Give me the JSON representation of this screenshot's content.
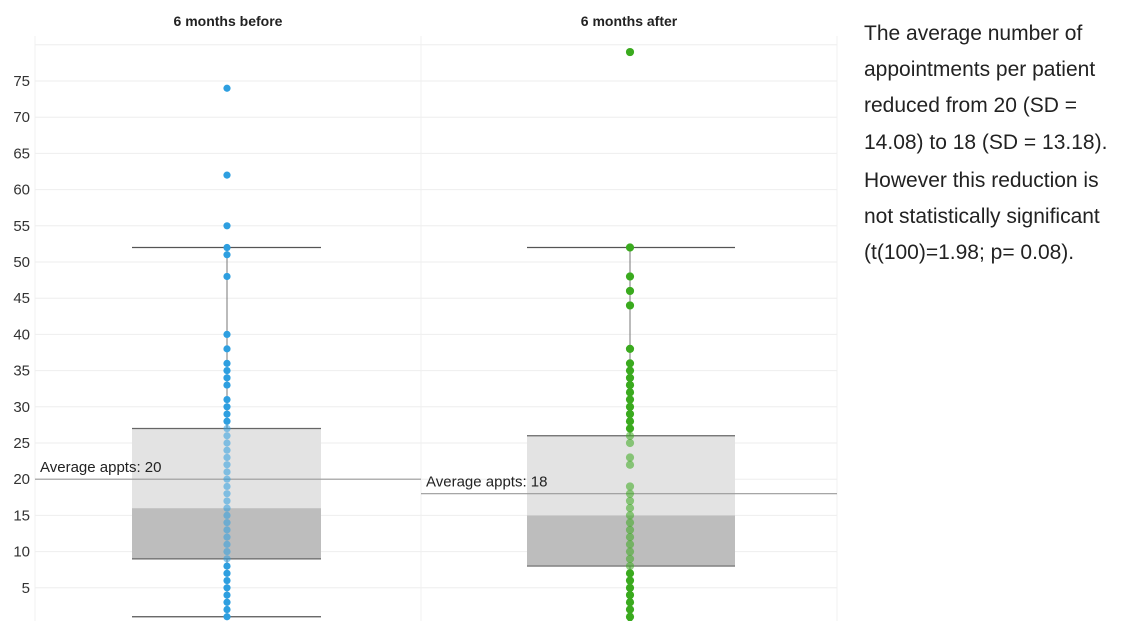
{
  "chart_data": {
    "type": "box-plot-with-points",
    "yaxis": {
      "range": [
        0,
        80
      ],
      "ticks": [
        5,
        10,
        15,
        20,
        25,
        30,
        35,
        40,
        45,
        50,
        55,
        60,
        65,
        70,
        75
      ],
      "grid": true
    },
    "panels": [
      {
        "title": "6 months before",
        "color": "#2e9fe0",
        "average": 20,
        "average_label": "Average appts: 20",
        "box": {
          "whisker_low": 1,
          "q1": 9,
          "median": 16,
          "q3": 27,
          "whisker_high": 52
        },
        "points": [
          1,
          2,
          3,
          4,
          5,
          6,
          7,
          8,
          9,
          10,
          11,
          12,
          13,
          14,
          15,
          16,
          17,
          18,
          19,
          20,
          21,
          22,
          23,
          24,
          25,
          26,
          27,
          28,
          29,
          30,
          31,
          33,
          34,
          35,
          36,
          38,
          40,
          48,
          51,
          52,
          55,
          62,
          74
        ]
      },
      {
        "title": "6 months after",
        "color": "#3aaa1e",
        "average": 18,
        "average_label": "Average appts: 18",
        "box": {
          "whisker_low": 0,
          "q1": 8,
          "median": 15,
          "q3": 26,
          "whisker_high": 52
        },
        "points": [
          0,
          1,
          2,
          3,
          4,
          5,
          6,
          7,
          8,
          9,
          10,
          11,
          12,
          13,
          14,
          15,
          16,
          17,
          18,
          19,
          22,
          23,
          25,
          26,
          27,
          28,
          29,
          30,
          31,
          32,
          33,
          34,
          35,
          36,
          38,
          44,
          46,
          48,
          52,
          79
        ]
      }
    ]
  },
  "summary": {
    "paragraph1": "The average number of appointments per patient reduced from 20 (SD = 14.08) to 18 (SD =  13.18).",
    "paragraph2": "However this reduction is not statistically significant (t(100)=1.98; p= 0.08)."
  }
}
